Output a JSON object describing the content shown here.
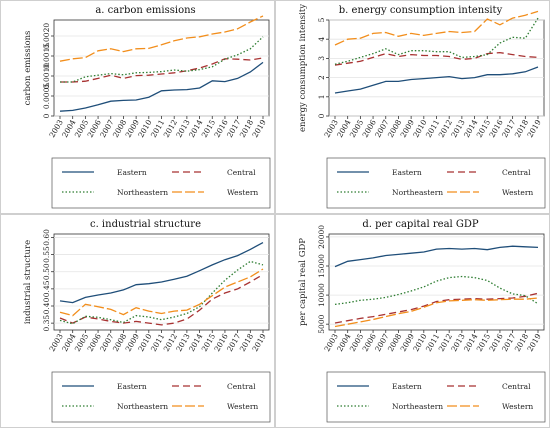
{
  "chart_data": [
    {
      "type": "line",
      "title": "a. carbon emissions",
      "xlabel": "",
      "ylabel": "carbon emissions",
      "x": [
        "2003",
        "2004",
        "2005",
        "2006",
        "2007",
        "2008",
        "2009",
        "2010",
        "2011",
        "2012",
        "2013",
        "2014",
        "2015",
        "2016",
        "2017",
        "2018",
        "2019"
      ],
      "ylim": [
        0,
        0.0024
      ],
      "yticks": [
        "0",
        "0.0005",
        "0.0010",
        "0.0015",
        "0.0020"
      ],
      "ytick_values": [
        0,
        0.0005,
        0.001,
        0.0015,
        0.002
      ],
      "series": [
        {
          "name": "Eastern",
          "color": "#1f4e79",
          "dash": "solid",
          "values": [
            0.00012,
            0.00014,
            0.0002,
            0.00028,
            0.00037,
            0.00039,
            0.0004,
            0.00047,
            0.00063,
            0.00065,
            0.00066,
            0.0007,
            0.00088,
            0.00086,
            0.00094,
            0.0011,
            0.00134
          ]
        },
        {
          "name": "Central",
          "color": "#a83232",
          "dash": "longdash",
          "values": [
            0.00085,
            0.00085,
            0.00087,
            0.00094,
            0.00102,
            0.00094,
            0.00101,
            0.00102,
            0.00105,
            0.00108,
            0.00113,
            0.0012,
            0.0013,
            0.00143,
            0.00142,
            0.0014,
            0.00145
          ]
        },
        {
          "name": "Northeastern",
          "color": "#2e7d32",
          "dash": "dot",
          "values": [
            0.00085,
            0.00085,
            0.00098,
            0.00102,
            0.00106,
            0.00103,
            0.00108,
            0.00109,
            0.00111,
            0.00115,
            0.00112,
            0.00116,
            0.00123,
            0.00142,
            0.00153,
            0.00168,
            0.00198
          ]
        },
        {
          "name": "Western",
          "color": "#f28e1c",
          "dash": "dash",
          "values": [
            0.00137,
            0.00143,
            0.00146,
            0.00163,
            0.00168,
            0.00161,
            0.00168,
            0.00169,
            0.00178,
            0.00188,
            0.00195,
            0.00198,
            0.00205,
            0.0021,
            0.00218,
            0.00235,
            0.0025
          ]
        }
      ]
    },
    {
      "type": "line",
      "title": "b. energy consumption intensity",
      "xlabel": "",
      "ylabel": "energy consumption intensity",
      "x": [
        "2003",
        "2004",
        "2005",
        "2006",
        "2007",
        "2008",
        "2009",
        "2010",
        "2011",
        "2012",
        "2013",
        "2014",
        "2015",
        "2016",
        "2017",
        "2018",
        "2019"
      ],
      "ylim": [
        0,
        5
      ],
      "yticks": [
        "0",
        "1",
        "2",
        "3",
        "4",
        "5"
      ],
      "ytick_values": [
        0,
        1,
        2,
        3,
        4,
        5
      ],
      "series": [
        {
          "name": "Eastern",
          "color": "#1f4e79",
          "dash": "solid",
          "values": [
            1.2,
            1.3,
            1.4,
            1.6,
            1.8,
            1.8,
            1.9,
            1.95,
            2.0,
            2.05,
            1.95,
            2.0,
            2.15,
            2.15,
            2.2,
            2.3,
            2.55
          ]
        },
        {
          "name": "Central",
          "color": "#a83232",
          "dash": "longdash",
          "values": [
            2.65,
            2.75,
            2.85,
            3.05,
            3.25,
            3.1,
            3.2,
            3.15,
            3.15,
            3.1,
            2.95,
            3.0,
            3.25,
            3.3,
            3.2,
            3.1,
            3.05
          ]
        },
        {
          "name": "Northeastern",
          "color": "#2e7d32",
          "dash": "dot",
          "values": [
            2.7,
            2.85,
            3.05,
            3.25,
            3.5,
            3.2,
            3.4,
            3.4,
            3.35,
            3.35,
            3.05,
            3.1,
            3.2,
            3.8,
            4.1,
            4.05,
            5.1
          ]
        },
        {
          "name": "Western",
          "color": "#f28e1c",
          "dash": "dash",
          "values": [
            3.7,
            4.0,
            4.05,
            4.3,
            4.35,
            4.15,
            4.3,
            4.2,
            4.3,
            4.4,
            4.35,
            4.4,
            5.05,
            4.75,
            5.1,
            5.25,
            5.45
          ]
        }
      ]
    },
    {
      "type": "line",
      "title": "c. industrial structure",
      "xlabel": "",
      "ylabel": "industrial structure",
      "x": [
        "2003",
        "2004",
        "2005",
        "2006",
        "2007",
        "2008",
        "2009",
        "2010",
        "2011",
        "2012",
        "2013",
        "2014",
        "2015",
        "2016",
        "2017",
        "2018",
        "2019"
      ],
      "ylim": [
        0.33,
        0.61
      ],
      "yticks": [
        "0.35",
        "0.40",
        "0.45",
        "0.50",
        "0.55",
        "0.60"
      ],
      "ytick_values": [
        0.35,
        0.4,
        0.45,
        0.5,
        0.55,
        0.6
      ],
      "series": [
        {
          "name": "Eastern",
          "color": "#1f4e79",
          "dash": "solid",
          "values": [
            0.415,
            0.41,
            0.425,
            0.432,
            0.438,
            0.447,
            0.462,
            0.465,
            0.47,
            0.478,
            0.487,
            0.503,
            0.52,
            0.535,
            0.547,
            0.565,
            0.585
          ]
        },
        {
          "name": "Central",
          "color": "#a83232",
          "dash": "longdash",
          "values": [
            0.365,
            0.35,
            0.368,
            0.362,
            0.355,
            0.35,
            0.355,
            0.35,
            0.345,
            0.35,
            0.362,
            0.388,
            0.42,
            0.438,
            0.45,
            0.47,
            0.492
          ]
        },
        {
          "name": "Northeastern",
          "color": "#2e7d32",
          "dash": "dot",
          "values": [
            0.358,
            0.348,
            0.37,
            0.367,
            0.36,
            0.352,
            0.372,
            0.368,
            0.36,
            0.368,
            0.378,
            0.398,
            0.438,
            0.475,
            0.505,
            0.53,
            0.52
          ]
        },
        {
          "name": "Western",
          "color": "#f28e1c",
          "dash": "dash",
          "values": [
            0.382,
            0.372,
            0.405,
            0.398,
            0.39,
            0.375,
            0.395,
            0.385,
            0.378,
            0.385,
            0.388,
            0.405,
            0.43,
            0.455,
            0.47,
            0.485,
            0.508
          ]
        }
      ]
    },
    {
      "type": "line",
      "title": "d. per capital real GDP",
      "xlabel": "",
      "ylabel": "per capital real GDP",
      "x": [
        "2003",
        "2004",
        "2005",
        "2006",
        "2007",
        "2008",
        "2009",
        "2010",
        "2011",
        "2012",
        "2013",
        "2014",
        "2015",
        "2016",
        "2017",
        "2018",
        "2019"
      ],
      "ylim": [
        4000,
        20500
      ],
      "yticks": [
        "5000",
        "10000",
        "15000",
        "20000"
      ],
      "ytick_values": [
        5000,
        10000,
        15000,
        20000
      ],
      "series": [
        {
          "name": "Eastern",
          "color": "#1f4e79",
          "dash": "solid",
          "values": [
            14900,
            15800,
            16100,
            16400,
            16800,
            17000,
            17200,
            17400,
            17900,
            18000,
            17900,
            18000,
            17800,
            18200,
            18400,
            18300,
            18200
          ]
        },
        {
          "name": "Central",
          "color": "#a83232",
          "dash": "longdash",
          "values": [
            5200,
            5600,
            6000,
            6300,
            6700,
            7100,
            7500,
            8100,
            8900,
            9200,
            9300,
            9400,
            9300,
            9400,
            9500,
            9800,
            10300
          ]
        },
        {
          "name": "Northeastern",
          "color": "#2e7d32",
          "dash": "dot",
          "values": [
            8400,
            8700,
            9100,
            9300,
            9600,
            10100,
            10700,
            11400,
            12400,
            13000,
            13200,
            13000,
            12500,
            11200,
            10200,
            9900,
            8500
          ]
        },
        {
          "name": "Western",
          "color": "#f28e1c",
          "dash": "dash",
          "values": [
            4600,
            5000,
            5400,
            5800,
            6300,
            6800,
            7200,
            7900,
            8700,
            9000,
            9100,
            9200,
            9100,
            9200,
            9300,
            9300,
            9500
          ]
        }
      ]
    }
  ],
  "legend": {
    "items": [
      {
        "label": "Eastern",
        "color": "#1f4e79",
        "dash": "solid"
      },
      {
        "label": "Central",
        "color": "#a83232",
        "dash": "longdash"
      },
      {
        "label": "Northeastern",
        "color": "#2e7d32",
        "dash": "dot"
      },
      {
        "label": "Western",
        "color": "#f28e1c",
        "dash": "dash"
      }
    ]
  }
}
